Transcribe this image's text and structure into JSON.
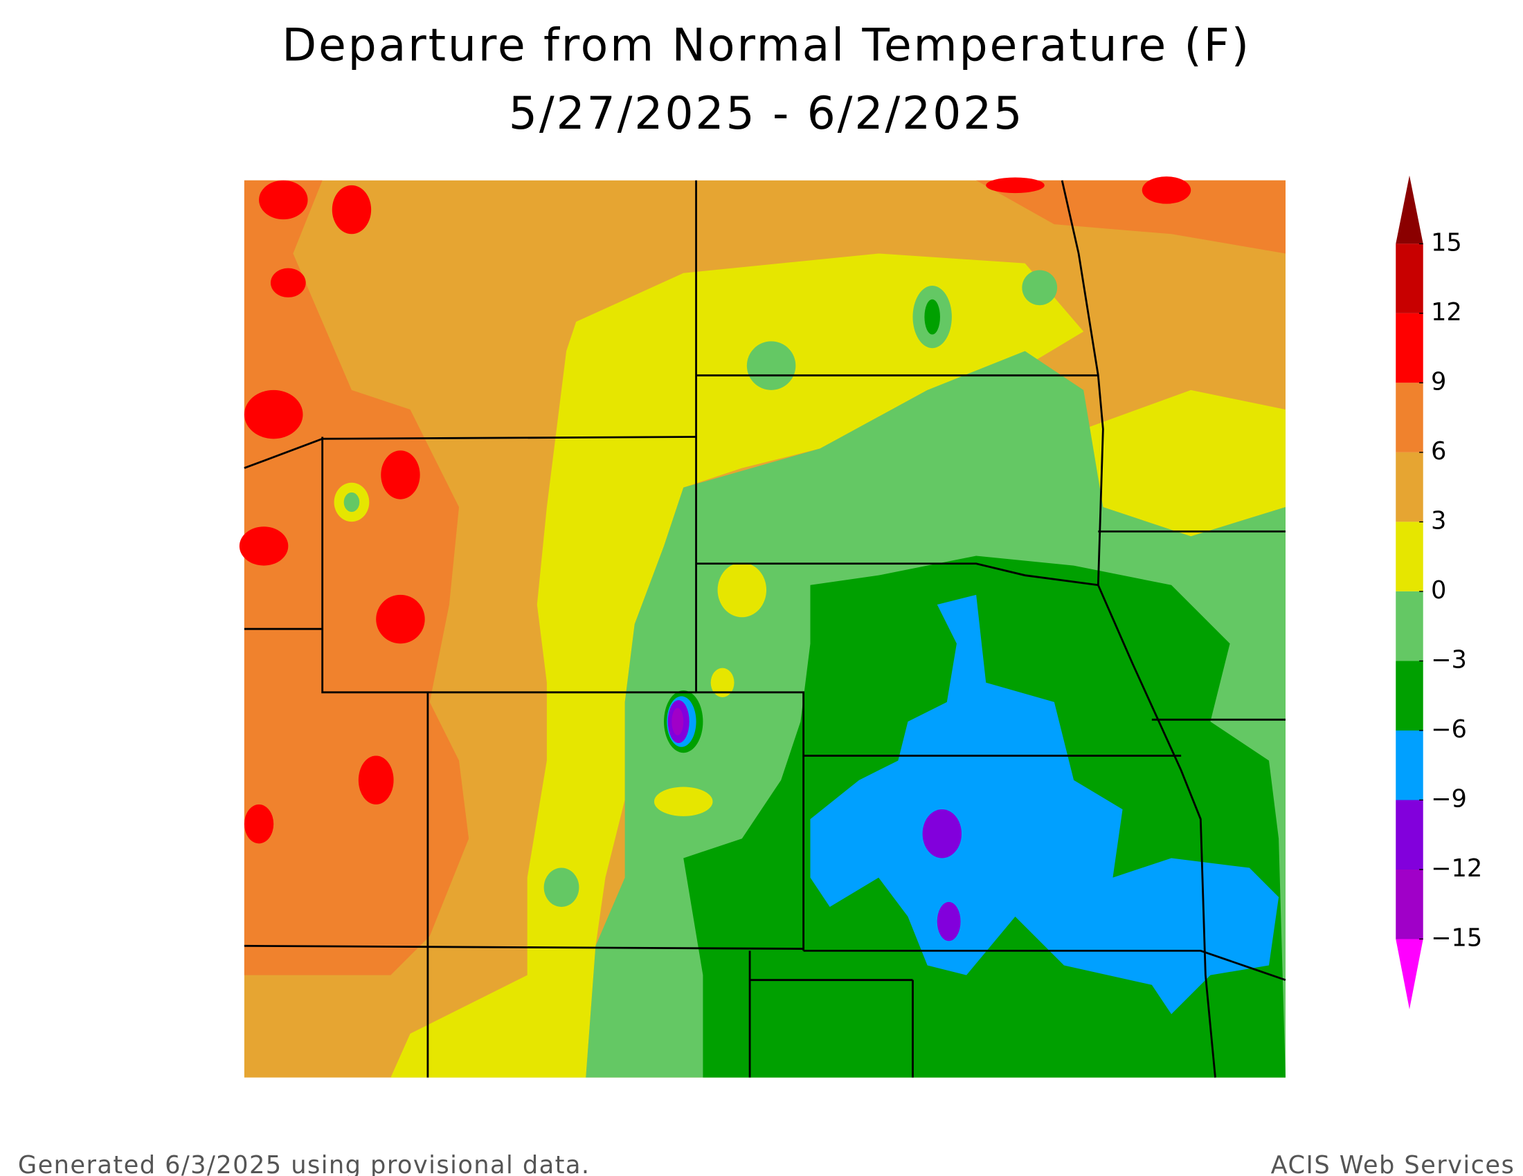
{
  "title": [
    "Departure from Normal Temperature (F)",
    "5/27/2025 - 6/2/2025"
  ],
  "legend": {
    "ticks": [
      15,
      12,
      9,
      6,
      3,
      0,
      {
        "value": -3,
        "label": "−3"
      },
      {
        "value": -6,
        "label": "−6"
      },
      {
        "value": -9,
        "label": "−9"
      },
      {
        "value": -12,
        "label": "−12"
      },
      {
        "value": -15,
        "label": "−15"
      }
    ],
    "colors": [
      "#8b0000",
      "#c80000",
      "#ff0000",
      "#f0822d",
      "#e6a532",
      "#e6e600",
      "#64c864",
      "#00a000",
      "#00a0ff",
      "#8200dc",
      "#a000c8",
      "#ff00ff"
    ]
  },
  "footer": {
    "left": "Generated 6/3/2025 using provisional data.",
    "right": "ACIS Web Services"
  }
}
